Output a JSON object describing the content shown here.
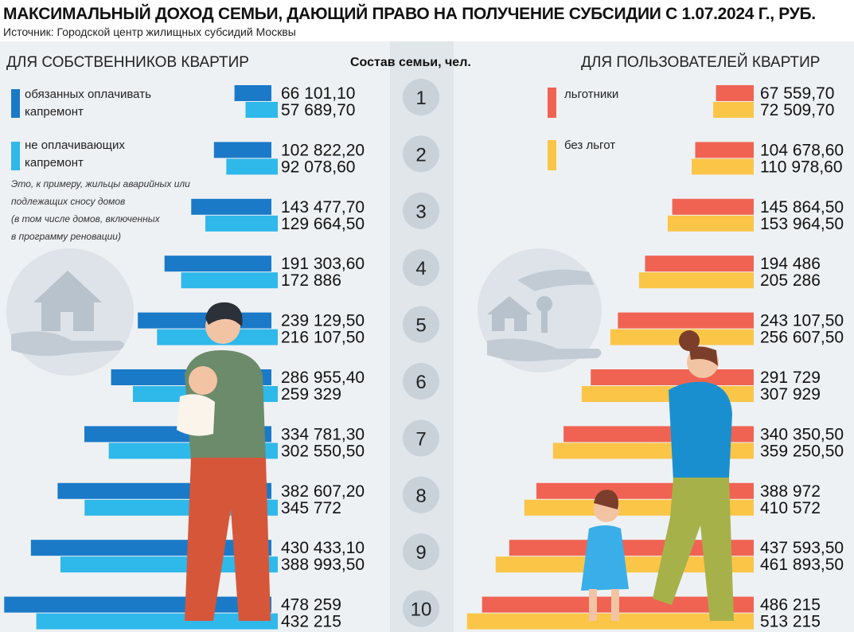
{
  "title": "МАКСИМАЛЬНЫЙ ДОХОД СЕМЬИ, ДАЮЩИЙ ПРАВО НА ПОЛУЧЕНИЕ СУБСИДИИ С 1.07.2024 Г., РУБ.",
  "source": "Источник: Городской центр жилищных субсидий Москвы",
  "left_heading": "ДЛЯ СОБСТВЕННИКОВ КВАРТИР",
  "center_heading": "Состав семьи, чел.",
  "right_heading": "ДЛЯ ПОЛЬЗОВАТЕЛЕЙ КВАРТИР",
  "left_legend": [
    {
      "label": "обязанных оплачивать\nкапремонт",
      "color": "#1a7ac8"
    },
    {
      "label": "не оплачивающих\nкапремонт",
      "color": "#2fb8ea"
    }
  ],
  "left_note": "Это, к примеру, жильцы аварийных или\nподлежащих сносу домов\n(в том числе домов, включенных\nв программу реновации)",
  "right_legend": [
    {
      "label": "льготники",
      "color": "#f06352"
    },
    {
      "label": "без льгот",
      "color": "#fbc548"
    }
  ],
  "colors": {
    "owners_capital": "#1a7ac8",
    "owners_no_capital": "#2fb8ea",
    "users_benefit": "#f06352",
    "users_no_benefit": "#fbc548",
    "circle": "#c9d1d9"
  },
  "chart_data": {
    "type": "bar",
    "title": "МАКСИМАЛЬНЫЙ ДОХОД СЕМЬИ, ДАЮЩИЙ ПРАВО НА ПОЛУЧЕНИЕ СУБСИДИИ С 1.07.2024 Г., РУБ.",
    "orientation": "horizontal-butterfly",
    "categories": [
      "1",
      "2",
      "3",
      "4",
      "5",
      "6",
      "7",
      "8",
      "9",
      "10"
    ],
    "series": [
      {
        "name": "обязанных оплачивать капремонт",
        "group": "ДЛЯ СОБСТВЕННИКОВ КВАРТИР",
        "values": [
          66101.1,
          102822.2,
          143477.7,
          191303.6,
          239129.5,
          286955.4,
          334781.3,
          382607.2,
          430433.1,
          478259
        ],
        "labels": [
          "66 101,10",
          "102 822,20",
          "143 477,70",
          "191 303,60",
          "239 129,50",
          "286 955,40",
          "334 781,30",
          "382 607,20",
          "430 433,10",
          "478 259"
        ]
      },
      {
        "name": "не оплачивающих капремонт",
        "group": "ДЛЯ СОБСТВЕННИКОВ КВАРТИР",
        "values": [
          57689.7,
          92078.6,
          129664.5,
          172886,
          216107.5,
          259329,
          302550.5,
          345772,
          388993.5,
          432215
        ],
        "labels": [
          "57 689,70",
          "92 078,60",
          "129 664,50",
          "172 886",
          "216 107,50",
          "259 329",
          "302 550,50",
          "345 772",
          "388 993,50",
          "432 215"
        ]
      },
      {
        "name": "льготники",
        "group": "ДЛЯ ПОЛЬЗОВАТЕЛЕЙ КВАРТИР",
        "values": [
          67559.7,
          104678.6,
          145864.5,
          194486,
          243107.5,
          291729,
          340350.5,
          388972,
          437593.5,
          486215
        ],
        "labels": [
          "67 559,70",
          "104 678,60",
          "145 864,50",
          "194 486",
          "243 107,50",
          "291 729",
          "340 350,50",
          "388 972",
          "437 593,50",
          "486 215"
        ]
      },
      {
        "name": "без льгот",
        "group": "ДЛЯ ПОЛЬЗОВАТЕЛЕЙ КВАРТИР",
        "values": [
          72509.7,
          110978.6,
          153964.5,
          205286,
          256607.5,
          307929,
          359250.5,
          410572,
          461893.5,
          513215
        ],
        "labels": [
          "72 509,70",
          "110 978,60",
          "153 964,50",
          "205 286",
          "256 607,50",
          "307 929",
          "359 250,50",
          "410 572",
          "461 893,50",
          "513 215"
        ]
      }
    ]
  }
}
